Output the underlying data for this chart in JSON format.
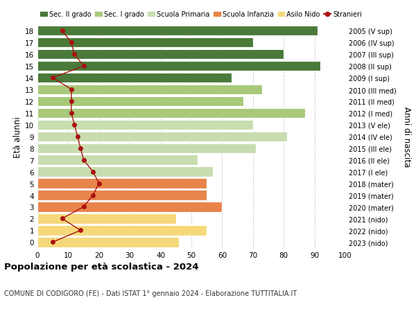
{
  "ages": [
    0,
    1,
    2,
    3,
    4,
    5,
    6,
    7,
    8,
    9,
    10,
    11,
    12,
    13,
    14,
    15,
    16,
    17,
    18
  ],
  "bar_values": [
    46,
    55,
    45,
    60,
    55,
    55,
    57,
    52,
    71,
    81,
    70,
    87,
    67,
    73,
    63,
    92,
    80,
    70,
    91
  ],
  "bar_colors": [
    "#f5d87a",
    "#f5d87a",
    "#f5d87a",
    "#e8844a",
    "#e8844a",
    "#e8844a",
    "#c8dcb0",
    "#c8dcb0",
    "#c8dcb0",
    "#c8dcb0",
    "#c8dcb0",
    "#a8c87a",
    "#a8c87a",
    "#a8c87a",
    "#4a7a3a",
    "#4a7a3a",
    "#4a7a3a",
    "#4a7a3a",
    "#4a7a3a"
  ],
  "stranieri_values": [
    5,
    14,
    8,
    15,
    18,
    20,
    18,
    15,
    14,
    13,
    12,
    11,
    11,
    11,
    5,
    15,
    12,
    11,
    8
  ],
  "right_labels": [
    "2023 (nido)",
    "2022 (nido)",
    "2021 (nido)",
    "2020 (mater)",
    "2019 (mater)",
    "2018 (mater)",
    "2017 (I ele)",
    "2016 (II ele)",
    "2015 (III ele)",
    "2014 (IV ele)",
    "2013 (V ele)",
    "2012 (I med)",
    "2011 (II med)",
    "2010 (III med)",
    "2009 (I sup)",
    "2008 (II sup)",
    "2007 (III sup)",
    "2006 (IV sup)",
    "2005 (V sup)"
  ],
  "legend_labels": [
    "Sec. II grado",
    "Sec. I grado",
    "Scuola Primaria",
    "Scuola Infanzia",
    "Asilo Nido",
    "Stranieri"
  ],
  "legend_colors": [
    "#4a7a3a",
    "#a8c87a",
    "#c8dcb0",
    "#e8844a",
    "#f5d87a",
    "#aa1111"
  ],
  "title": "Popolazione per età scolastica - 2024",
  "subtitle": "COMUNE DI CODIGORO (FE) - Dati ISTAT 1° gennaio 2024 - Elaborazione TUTTITALIA.IT",
  "ylabel_left": "Età alunni",
  "ylabel_right": "Anni di nascita",
  "xlim": [
    0,
    100
  ],
  "xticks": [
    0,
    10,
    20,
    30,
    40,
    50,
    60,
    70,
    80,
    90,
    100
  ],
  "bar_height": 0.85,
  "stranieri_color": "#aa1111",
  "bg_color": "#ffffff",
  "grid_color": "#cccccc"
}
